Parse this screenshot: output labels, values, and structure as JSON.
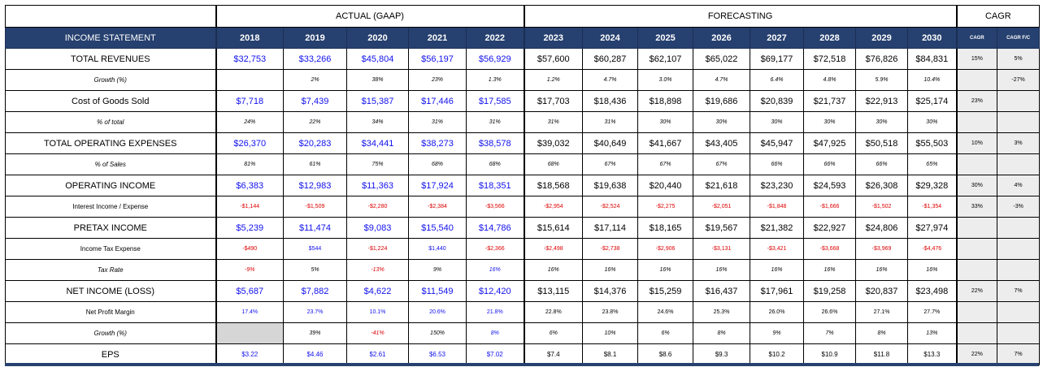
{
  "groups": {
    "actual": "ACTUAL (GAAP)",
    "forecast": "FORECASTING",
    "cagr": "CAGR"
  },
  "header": {
    "label": "INCOME STATEMENT",
    "years": [
      "2018",
      "2019",
      "2020",
      "2021",
      "2022",
      "2023",
      "2024",
      "2025",
      "2026",
      "2027",
      "2028",
      "2029",
      "2030"
    ],
    "cagr": "CAGR",
    "cagr_fc": "CAGR F/C"
  },
  "rows": [
    {
      "label": "TOTAL REVENUES",
      "size": "big",
      "italic": false,
      "values": [
        "$32,753",
        "$33,266",
        "$45,804",
        "$56,197",
        "$56,929",
        "$57,600",
        "$60,287",
        "$62,107",
        "$65,022",
        "$69,177",
        "$72,518",
        "$76,826",
        "$84,831"
      ],
      "colors": [
        "b",
        "b",
        "b",
        "b",
        "b",
        "k",
        "k",
        "k",
        "k",
        "k",
        "k",
        "k",
        "k"
      ],
      "cagr": "15%",
      "cagr_fc": "5%"
    },
    {
      "label": "Growth (%)",
      "size": "sm",
      "italic": true,
      "values": [
        "",
        "2%",
        "38%",
        "23%",
        "1.3%",
        "1.2%",
        "4.7%",
        "3.0%",
        "4.7%",
        "6.4%",
        "4.8%",
        "5.9%",
        "10.4%"
      ],
      "colors": [
        "k",
        "k",
        "k",
        "k",
        "k",
        "k",
        "k",
        "k",
        "k",
        "k",
        "k",
        "k",
        "k"
      ],
      "cagr": "",
      "cagr_fc": "-27%"
    },
    {
      "label": "Cost of Goods Sold",
      "size": "big",
      "italic": false,
      "values": [
        "$7,718",
        "$7,439",
        "$15,387",
        "$17,446",
        "$17,585",
        "$17,703",
        "$18,436",
        "$18,898",
        "$19,686",
        "$20,839",
        "$21,737",
        "$22,913",
        "$25,174"
      ],
      "colors": [
        "b",
        "b",
        "b",
        "b",
        "b",
        "k",
        "k",
        "k",
        "k",
        "k",
        "k",
        "k",
        "k"
      ],
      "cagr": "23%",
      "cagr_fc": ""
    },
    {
      "label": "% of total",
      "size": "sm",
      "italic": true,
      "values": [
        "24%",
        "22%",
        "34%",
        "31%",
        "31%",
        "31%",
        "31%",
        "30%",
        "30%",
        "30%",
        "30%",
        "30%",
        "30%"
      ],
      "colors": [
        "k",
        "k",
        "k",
        "k",
        "k",
        "k",
        "k",
        "k",
        "k",
        "k",
        "k",
        "k",
        "k"
      ],
      "cagr": "",
      "cagr_fc": ""
    },
    {
      "label": "TOTAL OPERATING EXPENSES",
      "size": "big",
      "italic": false,
      "values": [
        "$26,370",
        "$20,283",
        "$34,441",
        "$38,273",
        "$38,578",
        "$39,032",
        "$40,649",
        "$41,667",
        "$43,405",
        "$45,947",
        "$47,925",
        "$50,518",
        "$55,503"
      ],
      "colors": [
        "b",
        "b",
        "b",
        "b",
        "b",
        "k",
        "k",
        "k",
        "k",
        "k",
        "k",
        "k",
        "k"
      ],
      "cagr": "10%",
      "cagr_fc": "3%"
    },
    {
      "label": "% of Sales",
      "size": "sm",
      "italic": true,
      "values": [
        "81%",
        "61%",
        "75%",
        "68%",
        "68%",
        "68%",
        "67%",
        "67%",
        "67%",
        "66%",
        "66%",
        "66%",
        "65%"
      ],
      "colors": [
        "k",
        "k",
        "k",
        "k",
        "k",
        "k",
        "k",
        "k",
        "k",
        "k",
        "k",
        "k",
        "k"
      ],
      "cagr": "",
      "cagr_fc": ""
    },
    {
      "label": "OPERATING INCOME",
      "size": "big",
      "italic": false,
      "values": [
        "$6,383",
        "$12,983",
        "$11,363",
        "$17,924",
        "$18,351",
        "$18,568",
        "$19,638",
        "$20,440",
        "$21,618",
        "$23,230",
        "$24,593",
        "$26,308",
        "$29,328"
      ],
      "colors": [
        "b",
        "b",
        "b",
        "b",
        "b",
        "k",
        "k",
        "k",
        "k",
        "k",
        "k",
        "k",
        "k"
      ],
      "cagr": "30%",
      "cagr_fc": "4%"
    },
    {
      "label": "Interest Income / Expense",
      "size": "sm",
      "italic": false,
      "values": [
        "-$1,144",
        "-$1,509",
        "-$2,280",
        "-$2,384",
        "-$3,566",
        "-$2,954",
        "-$2,524",
        "-$2,275",
        "-$2,051",
        "-$1,848",
        "-$1,666",
        "-$1,502",
        "-$1,354"
      ],
      "colors": [
        "r",
        "r",
        "r",
        "r",
        "r",
        "r",
        "r",
        "r",
        "r",
        "r",
        "r",
        "r",
        "r"
      ],
      "cagr": "33%",
      "cagr_fc": "-3%"
    },
    {
      "label": "PRETAX INCOME",
      "size": "big",
      "italic": false,
      "values": [
        "$5,239",
        "$11,474",
        "$9,083",
        "$15,540",
        "$14,786",
        "$15,614",
        "$17,114",
        "$18,165",
        "$19,567",
        "$21,382",
        "$22,927",
        "$24,806",
        "$27,974"
      ],
      "colors": [
        "b",
        "b",
        "b",
        "b",
        "b",
        "k",
        "k",
        "k",
        "k",
        "k",
        "k",
        "k",
        "k"
      ],
      "cagr": "",
      "cagr_fc": ""
    },
    {
      "label": "Income Tax Expense",
      "size": "sm",
      "italic": false,
      "values": [
        "-$490",
        "$544",
        "-$1,224",
        "$1,440",
        "-$2,366",
        "-$2,498",
        "-$2,738",
        "-$2,906",
        "-$3,131",
        "-$3,421",
        "-$3,668",
        "-$3,969",
        "-$4,476"
      ],
      "colors": [
        "r",
        "b",
        "r",
        "b",
        "r",
        "r",
        "r",
        "r",
        "r",
        "r",
        "r",
        "r",
        "r"
      ],
      "cagr": "",
      "cagr_fc": ""
    },
    {
      "label": "Tax Rate",
      "size": "sm",
      "italic": true,
      "values": [
        "-9%",
        "5%",
        "-13%",
        "9%",
        "16%",
        "16%",
        "16%",
        "16%",
        "16%",
        "16%",
        "16%",
        "16%",
        "16%"
      ],
      "colors": [
        "r",
        "k",
        "r",
        "k",
        "b",
        "k",
        "k",
        "k",
        "k",
        "k",
        "k",
        "k",
        "k"
      ],
      "cagr": "",
      "cagr_fc": ""
    },
    {
      "label": "NET INCOME (LOSS)",
      "size": "big",
      "italic": false,
      "values": [
        "$5,687",
        "$7,882",
        "$4,622",
        "$11,549",
        "$12,420",
        "$13,115",
        "$14,376",
        "$15,259",
        "$16,437",
        "$17,961",
        "$19,258",
        "$20,837",
        "$23,498"
      ],
      "colors": [
        "b",
        "b",
        "b",
        "b",
        "b",
        "k",
        "k",
        "k",
        "k",
        "k",
        "k",
        "k",
        "k"
      ],
      "cagr": "22%",
      "cagr_fc": "7%"
    },
    {
      "label": "Net Profit Margin",
      "size": "sm",
      "italic": false,
      "values": [
        "17.4%",
        "23.7%",
        "10.1%",
        "20.6%",
        "21.8%",
        "22.8%",
        "23.8%",
        "24.6%",
        "25.3%",
        "26.0%",
        "26.6%",
        "27.1%",
        "27.7%"
      ],
      "colors": [
        "b",
        "b",
        "b",
        "b",
        "b",
        "k",
        "k",
        "k",
        "k",
        "k",
        "k",
        "k",
        "k"
      ],
      "cagr": "",
      "cagr_fc": ""
    },
    {
      "label": "Growth (%)",
      "size": "sm",
      "italic": true,
      "values": [
        "",
        "39%",
        "-41%",
        "150%",
        "8%",
        "6%",
        "10%",
        "6%",
        "8%",
        "9%",
        "7%",
        "8%",
        "13%"
      ],
      "colors": [
        "k",
        "k",
        "r",
        "k",
        "b",
        "k",
        "k",
        "k",
        "k",
        "k",
        "k",
        "k",
        "k"
      ],
      "gray_first": true,
      "cagr": "",
      "cagr_fc": ""
    },
    {
      "label": "EPS",
      "size": "big",
      "italic": false,
      "values": [
        "$3.22",
        "$4.46",
        "$2.61",
        "$6.53",
        "$7.02",
        "$7.4",
        "$8.1",
        "$8.6",
        "$9.3",
        "$10.2",
        "$10.9",
        "$11.8",
        "$13.3"
      ],
      "colors": [
        "b",
        "b",
        "b",
        "b",
        "b",
        "k",
        "k",
        "k",
        "k",
        "k",
        "k",
        "k",
        "k"
      ],
      "small_values": true,
      "cagr": "22%",
      "cagr_fc": "7%"
    }
  ]
}
